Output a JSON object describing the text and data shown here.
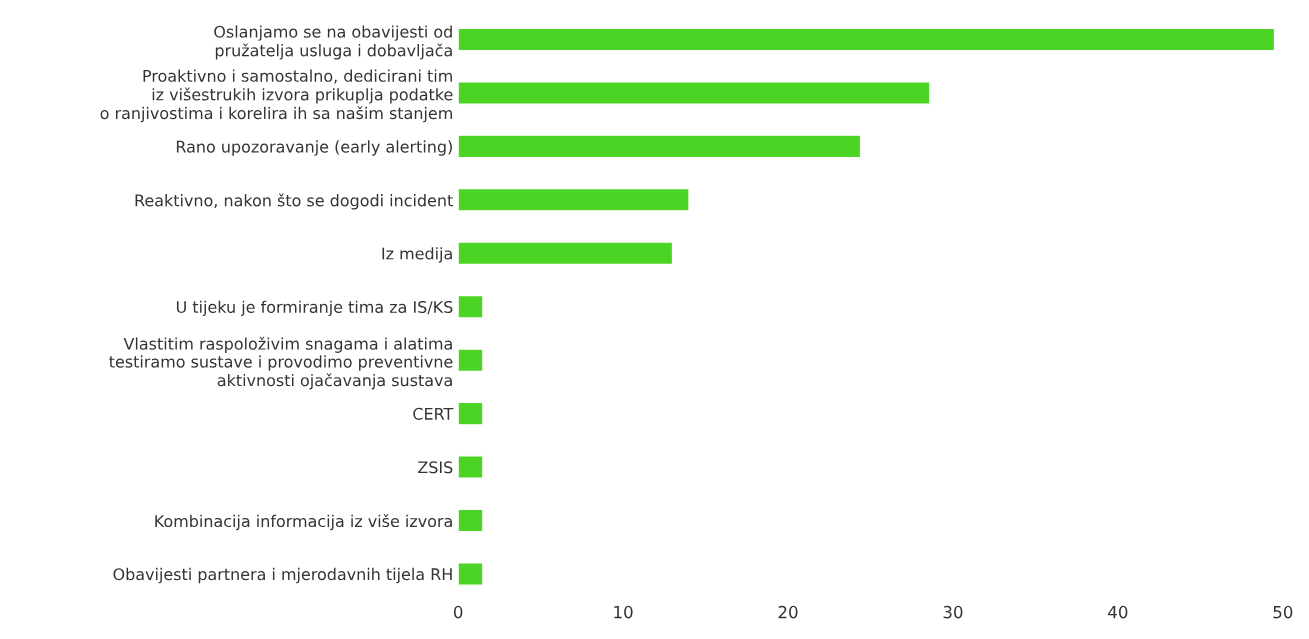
{
  "chart_data": {
    "type": "bar",
    "orientation": "horizontal",
    "categories": [
      "Oslanjamo se na obavijesti od\npružatelja usluga i dobavljača",
      "Proaktivno i samostalno, dedicirani tim\niz višestrukih izvora prikuplja podatke\no ranjivostima i korelira ih sa našim stanjem",
      "Rano upozoravanje (early alerting)",
      "Reaktivno, nakon što se dogodi incident",
      "Iz medija",
      "U tijeku je formiranje tima za IS/KS",
      "Vlastitim raspoloživim snagama i alatima\ntestiramo sustave i provodimo preventivne\naktivnosti ojačavanja sustava",
      "CERT",
      "ZSIS",
      "Kombinacija informacija iz više izvora",
      "Obavijesti partnera i mjerodavnih tijela RH"
    ],
    "values": [
      49.5,
      28.6,
      24.4,
      14.0,
      13.0,
      1.5,
      1.5,
      1.5,
      1.5,
      1.5,
      1.5
    ],
    "color": "#4cd424",
    "xlim": [
      0,
      50
    ],
    "xticks": [
      0,
      10,
      20,
      30,
      40,
      50
    ],
    "grid": false
  }
}
